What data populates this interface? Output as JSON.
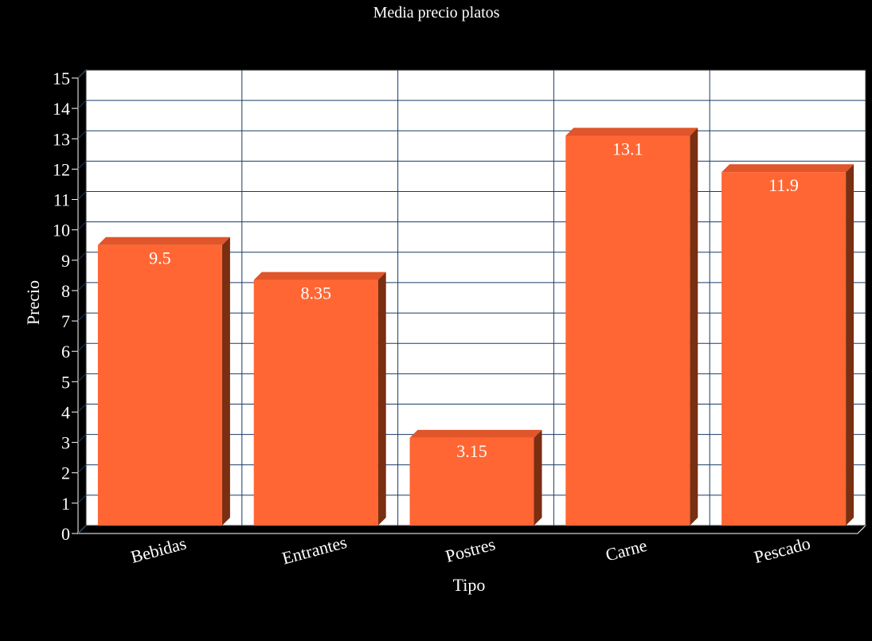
{
  "chart_data": {
    "type": "bar",
    "title": "Media precio platos",
    "xlabel": "Tipo",
    "ylabel": "Precio",
    "categories": [
      "Bebidas",
      "Entrantes",
      "Postres",
      "Carne",
      "Pescado"
    ],
    "values": [
      9.5,
      8.35,
      3.15,
      13.1,
      11.9
    ],
    "value_labels": [
      "9.5",
      "8.35",
      "3.15",
      "13.1",
      "11.9"
    ],
    "ylim": [
      0,
      15
    ],
    "yticks": [
      "0",
      "1",
      "2",
      "3",
      "4",
      "5",
      "6",
      "7",
      "8",
      "9",
      "10",
      "11",
      "12",
      "13",
      "14",
      "15"
    ],
    "grid": true,
    "bar_style": "3d",
    "colors": {
      "background": "#000000",
      "plot_background": "#ffffff",
      "grid": "#1a3a66",
      "bar_front": "#ff6633",
      "bar_top": "#e0552a",
      "bar_side": "#7a2e12",
      "text": "#ffffff"
    }
  }
}
